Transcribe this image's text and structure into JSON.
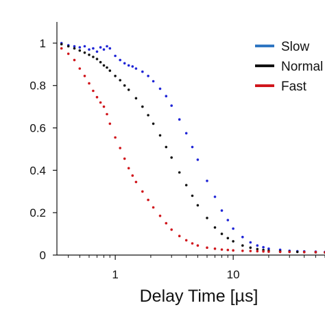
{
  "chart_data": {
    "type": "scatter",
    "title": "",
    "xlabel": "Delay Time [µs]",
    "ylabel": "",
    "x_scale": "log",
    "xlim": [
      0.32,
      60
    ],
    "ylim": [
      0,
      1.1
    ],
    "x_ticks": [
      {
        "value": 1,
        "label": "1"
      },
      {
        "value": 10,
        "label": "10"
      }
    ],
    "y_ticks": [
      {
        "value": 0,
        "label": "0"
      },
      {
        "value": 0.2,
        "label": "0.2"
      },
      {
        "value": 0.4,
        "label": "0.4"
      },
      {
        "value": 0.6,
        "label": "0.6"
      },
      {
        "value": 0.8,
        "label": "0.8"
      },
      {
        "value": 1,
        "label": "1"
      }
    ],
    "grid": false,
    "legend_position": "top-right",
    "series": [
      {
        "name": "Slow",
        "color": "#1f25d6",
        "legend_color": "#2f76c2",
        "x": [
          0.35,
          0.4,
          0.45,
          0.5,
          0.55,
          0.6,
          0.65,
          0.7,
          0.75,
          0.8,
          0.85,
          0.9,
          1.0,
          1.1,
          1.2,
          1.3,
          1.4,
          1.5,
          1.7,
          1.9,
          2.1,
          2.4,
          2.7,
          3.0,
          3.5,
          4.0,
          4.5,
          5.0,
          6.0,
          7.0,
          8.0,
          9.0,
          10,
          12,
          14,
          16,
          18,
          20,
          25,
          30,
          35,
          40,
          50,
          60
        ],
        "y": [
          1.0,
          0.99,
          0.985,
          0.98,
          0.985,
          0.97,
          0.975,
          0.96,
          0.98,
          0.97,
          0.985,
          0.975,
          0.94,
          0.92,
          0.905,
          0.895,
          0.89,
          0.88,
          0.865,
          0.845,
          0.82,
          0.785,
          0.75,
          0.705,
          0.64,
          0.575,
          0.51,
          0.45,
          0.35,
          0.275,
          0.21,
          0.165,
          0.125,
          0.085,
          0.06,
          0.045,
          0.037,
          0.03,
          0.025,
          0.02,
          0.018,
          0.017,
          0.016,
          0.015
        ]
      },
      {
        "name": "Normal",
        "color": "#111111",
        "legend_color": "#111111",
        "x": [
          0.35,
          0.4,
          0.45,
          0.5,
          0.55,
          0.6,
          0.65,
          0.7,
          0.75,
          0.8,
          0.85,
          0.9,
          1.0,
          1.1,
          1.2,
          1.3,
          1.5,
          1.7,
          1.9,
          2.1,
          2.4,
          2.7,
          3.0,
          3.5,
          4.0,
          4.5,
          5.0,
          6.0,
          7.0,
          8.0,
          9.0,
          10,
          12,
          14,
          16,
          18,
          20,
          25,
          30,
          35,
          40,
          50,
          60
        ],
        "y": [
          0.995,
          0.985,
          0.975,
          0.965,
          0.955,
          0.945,
          0.935,
          0.925,
          0.91,
          0.895,
          0.885,
          0.87,
          0.845,
          0.825,
          0.8,
          0.78,
          0.74,
          0.7,
          0.66,
          0.62,
          0.565,
          0.51,
          0.46,
          0.39,
          0.33,
          0.28,
          0.235,
          0.175,
          0.13,
          0.1,
          0.08,
          0.065,
          0.045,
          0.035,
          0.028,
          0.024,
          0.021,
          0.018,
          0.016,
          0.015,
          0.014,
          0.013,
          0.012
        ]
      },
      {
        "name": "Fast",
        "color": "#d0161c",
        "legend_color": "#d0161c",
        "x": [
          0.35,
          0.4,
          0.45,
          0.5,
          0.55,
          0.6,
          0.65,
          0.7,
          0.75,
          0.8,
          0.85,
          0.9,
          1.0,
          1.1,
          1.2,
          1.3,
          1.4,
          1.5,
          1.7,
          1.9,
          2.1,
          2.4,
          2.7,
          3.0,
          3.5,
          4.0,
          4.5,
          5.0,
          6.0,
          7.0,
          8.0,
          9.0,
          10,
          12,
          14,
          16,
          18,
          20,
          25,
          30,
          40,
          50,
          60
        ],
        "y": [
          0.975,
          0.95,
          0.92,
          0.88,
          0.845,
          0.81,
          0.775,
          0.745,
          0.72,
          0.7,
          0.665,
          0.62,
          0.555,
          0.505,
          0.455,
          0.41,
          0.375,
          0.345,
          0.3,
          0.26,
          0.225,
          0.185,
          0.15,
          0.12,
          0.09,
          0.07,
          0.055,
          0.045,
          0.035,
          0.03,
          0.026,
          0.024,
          0.022,
          0.02,
          0.019,
          0.018,
          0.017,
          0.016,
          0.015,
          0.015,
          0.014,
          0.014,
          0.013
        ]
      }
    ]
  }
}
